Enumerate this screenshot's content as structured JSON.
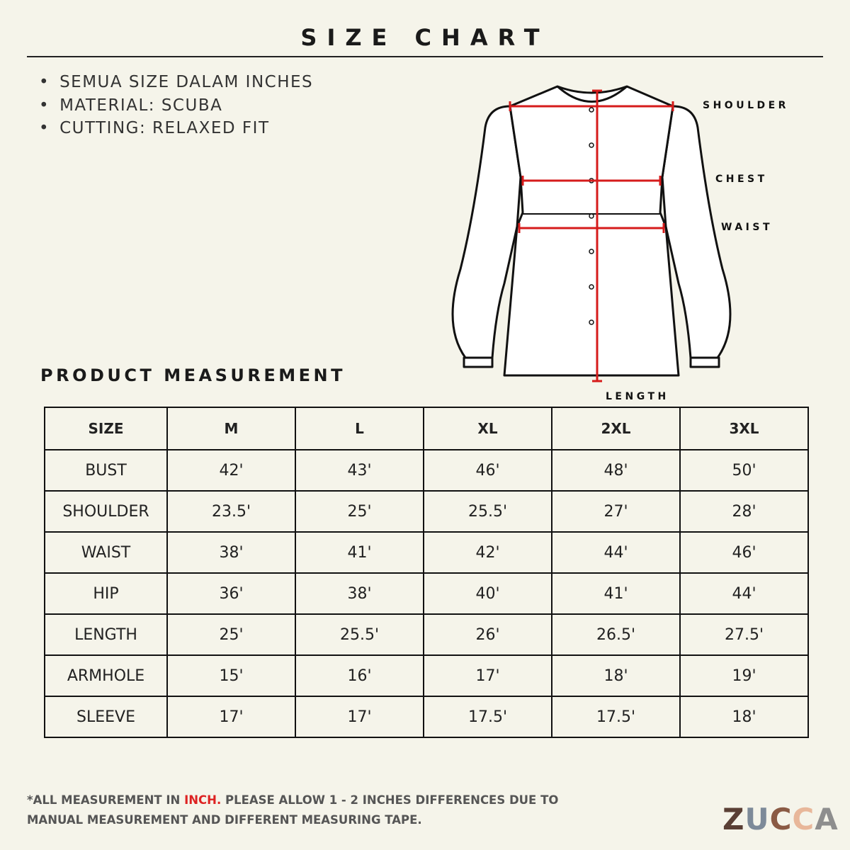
{
  "header": {
    "title": "SIZE CHART"
  },
  "notes": [
    "SEMUA SIZE DALAM INCHES",
    "MATERIAL: SCUBA",
    "CUTTING: RELAXED FIT"
  ],
  "diagram": {
    "labels": [
      "SHOULDER",
      "CHEST",
      "WAIST",
      "LENGTH"
    ]
  },
  "section_title": "PRODUCT MEASUREMENT",
  "table": {
    "header": [
      "SIZE",
      "M",
      "L",
      "XL",
      "2XL",
      "3XL"
    ],
    "rows": [
      [
        "BUST",
        "42'",
        "43'",
        "46'",
        "48'",
        "50'"
      ],
      [
        "SHOULDER",
        "23.5'",
        "25'",
        "25.5'",
        "27'",
        "28'"
      ],
      [
        "WAIST",
        "38'",
        "41'",
        "42'",
        "44'",
        "46'"
      ],
      [
        "HIP",
        "36'",
        "38'",
        "40'",
        "41'",
        "44'"
      ],
      [
        "LENGTH",
        "25'",
        "25.5'",
        "26'",
        "26.5'",
        "27.5'"
      ],
      [
        "ARMHOLE",
        "15'",
        "16'",
        "17'",
        "18'",
        "19'"
      ],
      [
        "SLEEVE",
        "17'",
        "17'",
        "17.5'",
        "17.5'",
        "18'"
      ]
    ]
  },
  "footnote": {
    "lead": "*ALL MEASUREMENT IN ",
    "highlight": "INCH.",
    "rest": " PLEASE ALLOW 1 - 2 INCHES DIFFERENCES DUE TO MANUAL MEASUREMENT AND DIFFERENT MEASURING TAPE."
  },
  "brand": {
    "letters": [
      "Z",
      "U",
      "C",
      "C",
      "A"
    ]
  }
}
